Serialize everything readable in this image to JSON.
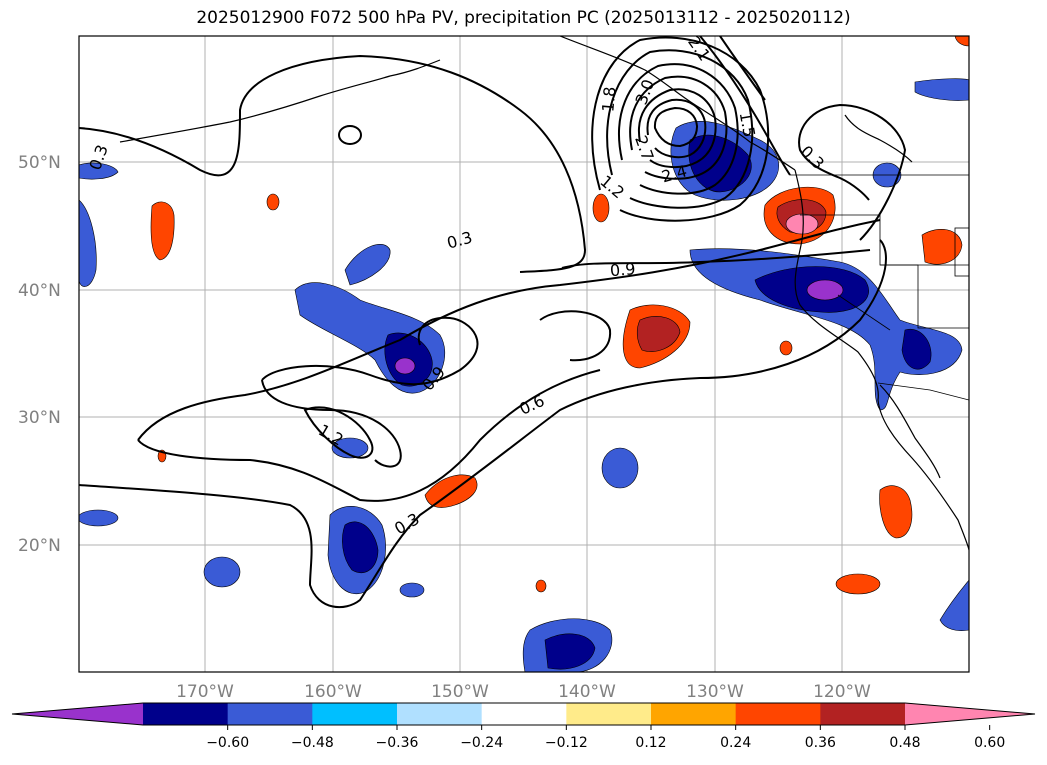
{
  "title": "2025012900 F072 500 hPa PV, precipitation PC (2025013112 - 2025020112)",
  "lat_labels": [
    "50°N",
    "40°N",
    "30°N",
    "20°N"
  ],
  "lon_labels": [
    "170°W",
    "160°W",
    "150°W",
    "140°W",
    "130°W",
    "120°W"
  ],
  "colorbar": {
    "ticks": [
      "−0.60",
      "−0.48",
      "−0.36",
      "−0.24",
      "−0.12",
      "0.12",
      "0.24",
      "0.36",
      "0.48",
      "0.60"
    ],
    "colors": [
      "#9932cc",
      "#00008b",
      "#3a5bd6",
      "#00bfff",
      "#b0e0ff",
      "#ffffff",
      "#ffeb8a",
      "#ffa500",
      "#ff4500",
      "#b22222",
      "#ff85b0"
    ]
  },
  "contour_labels": [
    "0.3",
    "0.3",
    "0.3",
    "0.3",
    "0.6",
    "0.9",
    "0.9",
    "1.2",
    "1.2",
    "1.8",
    "2.1",
    "2.4",
    "2.7",
    "3.0",
    "1.5"
  ]
}
